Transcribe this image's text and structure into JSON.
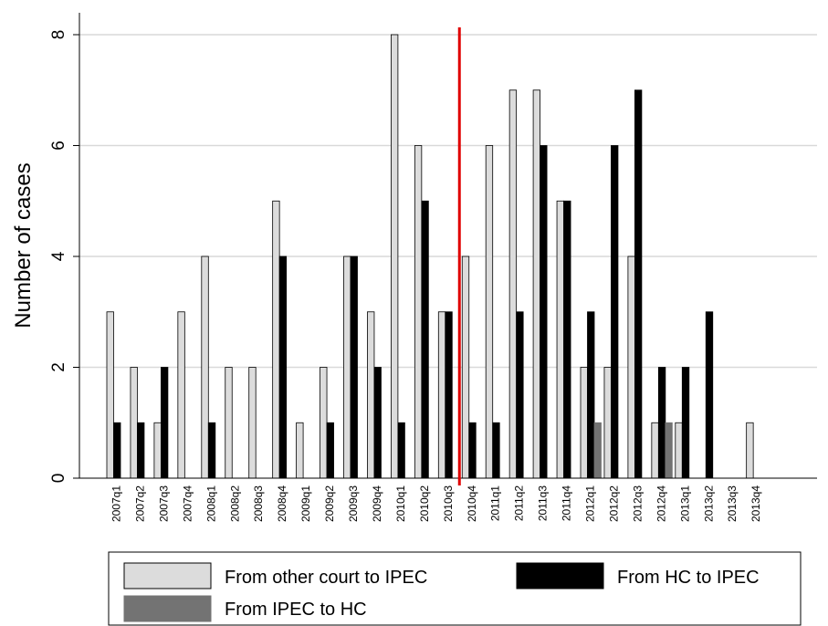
{
  "colors": {
    "other_court_to_ipec": "#dcdcdc",
    "hc_to_ipec": "#000000",
    "ipec_to_hc": "#737373",
    "marker_line": "#e00000",
    "gridline": "#d9d9d9"
  },
  "chart_data": {
    "type": "bar",
    "title": "",
    "xlabel": "",
    "ylabel": "Number of cases",
    "ylim": [
      0,
      8.5
    ],
    "yticks": [
      0,
      2,
      4,
      6,
      8
    ],
    "grid": true,
    "legend_position": "bottom",
    "marker_after_category": "2010q3",
    "categories": [
      "2007q1",
      "2007q2",
      "2007q3",
      "2007q4",
      "2008q1",
      "2008q2",
      "2008q3",
      "2008q4",
      "2009q1",
      "2009q2",
      "2009q3",
      "2009q4",
      "2010q1",
      "2010q2",
      "2010q3",
      "2010q4",
      "2011q1",
      "2011q2",
      "2011q3",
      "2011q4",
      "2012q1",
      "2012q2",
      "2012q3",
      "2012q4",
      "2013q1",
      "2013q2",
      "2013q3",
      "2013q4"
    ],
    "series": [
      {
        "name": "From other court to IPEC",
        "color_key": "other_court_to_ipec",
        "values": [
          3,
          2,
          1,
          3,
          4,
          2,
          2,
          5,
          1,
          2,
          4,
          3,
          8,
          6,
          3,
          4,
          6,
          7,
          7,
          5,
          2,
          2,
          4,
          1,
          1,
          0,
          0,
          1
        ]
      },
      {
        "name": "From HC to IPEC",
        "color_key": "hc_to_ipec",
        "values": [
          1,
          1,
          2,
          0,
          1,
          0,
          0,
          4,
          0,
          1,
          4,
          2,
          1,
          5,
          3,
          1,
          1,
          3,
          6,
          5,
          3,
          6,
          7,
          2,
          2,
          3,
          0,
          0
        ]
      },
      {
        "name": "From IPEC to HC",
        "color_key": "ipec_to_hc",
        "values": [
          0,
          0,
          0,
          0,
          0,
          0,
          0,
          0,
          0,
          0,
          0,
          0,
          0,
          0,
          0,
          0,
          0,
          0,
          0,
          0,
          1,
          0,
          0,
          1,
          0,
          0,
          0,
          0
        ]
      }
    ]
  }
}
